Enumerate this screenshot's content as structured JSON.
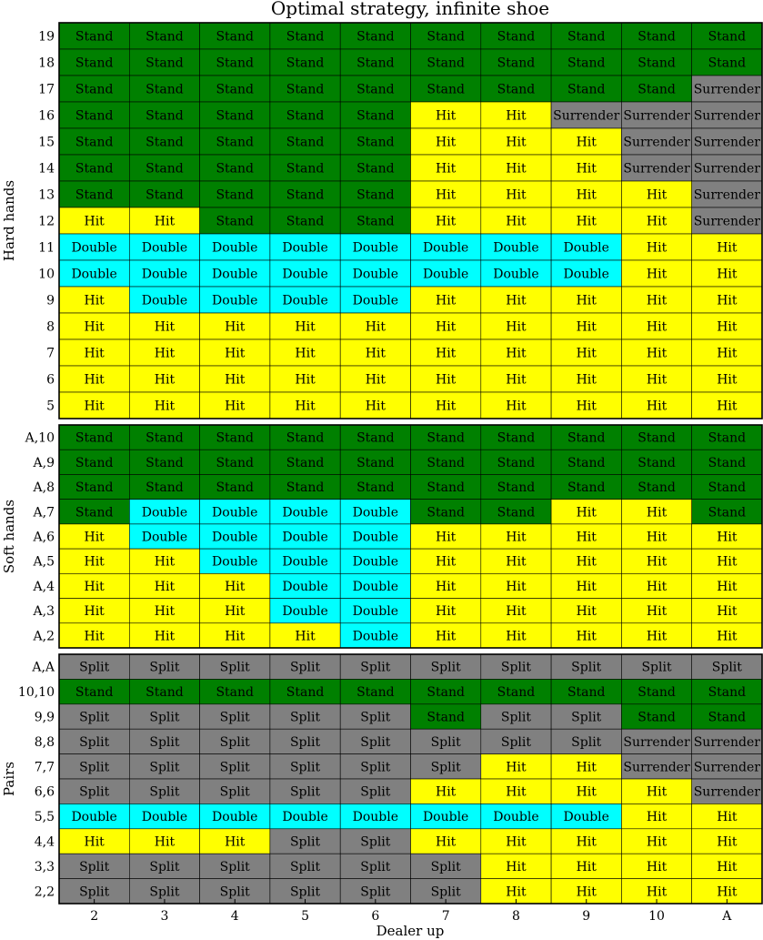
{
  "chart_data": {
    "type": "heatmap",
    "title": "Optimal strategy, infinite shoe",
    "xlabel": "Dealer up",
    "x": [
      "2",
      "3",
      "4",
      "5",
      "6",
      "7",
      "8",
      "9",
      "10",
      "A"
    ],
    "grid": true,
    "colors": {
      "Stand": "#008000",
      "Hit": "#ffff00",
      "Double": "#00ffff",
      "Split": "#808080",
      "Surrender": "#808080"
    },
    "panels": [
      {
        "ylabel": "Hard hands",
        "rows": [
          {
            "label": "19",
            "values": [
              "Stand",
              "Stand",
              "Stand",
              "Stand",
              "Stand",
              "Stand",
              "Stand",
              "Stand",
              "Stand",
              "Stand"
            ]
          },
          {
            "label": "18",
            "values": [
              "Stand",
              "Stand",
              "Stand",
              "Stand",
              "Stand",
              "Stand",
              "Stand",
              "Stand",
              "Stand",
              "Stand"
            ]
          },
          {
            "label": "17",
            "values": [
              "Stand",
              "Stand",
              "Stand",
              "Stand",
              "Stand",
              "Stand",
              "Stand",
              "Stand",
              "Stand",
              "Surrender"
            ]
          },
          {
            "label": "16",
            "values": [
              "Stand",
              "Stand",
              "Stand",
              "Stand",
              "Stand",
              "Hit",
              "Hit",
              "Surrender",
              "Surrender",
              "Surrender"
            ]
          },
          {
            "label": "15",
            "values": [
              "Stand",
              "Stand",
              "Stand",
              "Stand",
              "Stand",
              "Hit",
              "Hit",
              "Hit",
              "Surrender",
              "Surrender"
            ]
          },
          {
            "label": "14",
            "values": [
              "Stand",
              "Stand",
              "Stand",
              "Stand",
              "Stand",
              "Hit",
              "Hit",
              "Hit",
              "Surrender",
              "Surrender"
            ]
          },
          {
            "label": "13",
            "values": [
              "Stand",
              "Stand",
              "Stand",
              "Stand",
              "Stand",
              "Hit",
              "Hit",
              "Hit",
              "Hit",
              "Surrender"
            ]
          },
          {
            "label": "12",
            "values": [
              "Hit",
              "Hit",
              "Stand",
              "Stand",
              "Stand",
              "Hit",
              "Hit",
              "Hit",
              "Hit",
              "Surrender"
            ]
          },
          {
            "label": "11",
            "values": [
              "Double",
              "Double",
              "Double",
              "Double",
              "Double",
              "Double",
              "Double",
              "Double",
              "Hit",
              "Hit"
            ]
          },
          {
            "label": "10",
            "values": [
              "Double",
              "Double",
              "Double",
              "Double",
              "Double",
              "Double",
              "Double",
              "Double",
              "Hit",
              "Hit"
            ]
          },
          {
            "label": "9",
            "values": [
              "Hit",
              "Double",
              "Double",
              "Double",
              "Double",
              "Hit",
              "Hit",
              "Hit",
              "Hit",
              "Hit"
            ]
          },
          {
            "label": "8",
            "values": [
              "Hit",
              "Hit",
              "Hit",
              "Hit",
              "Hit",
              "Hit",
              "Hit",
              "Hit",
              "Hit",
              "Hit"
            ]
          },
          {
            "label": "7",
            "values": [
              "Hit",
              "Hit",
              "Hit",
              "Hit",
              "Hit",
              "Hit",
              "Hit",
              "Hit",
              "Hit",
              "Hit"
            ]
          },
          {
            "label": "6",
            "values": [
              "Hit",
              "Hit",
              "Hit",
              "Hit",
              "Hit",
              "Hit",
              "Hit",
              "Hit",
              "Hit",
              "Hit"
            ]
          },
          {
            "label": "5",
            "values": [
              "Hit",
              "Hit",
              "Hit",
              "Hit",
              "Hit",
              "Hit",
              "Hit",
              "Hit",
              "Hit",
              "Hit"
            ]
          }
        ]
      },
      {
        "ylabel": "Soft hands",
        "rows": [
          {
            "label": "A,10",
            "values": [
              "Stand",
              "Stand",
              "Stand",
              "Stand",
              "Stand",
              "Stand",
              "Stand",
              "Stand",
              "Stand",
              "Stand"
            ]
          },
          {
            "label": "A,9",
            "values": [
              "Stand",
              "Stand",
              "Stand",
              "Stand",
              "Stand",
              "Stand",
              "Stand",
              "Stand",
              "Stand",
              "Stand"
            ]
          },
          {
            "label": "A,8",
            "values": [
              "Stand",
              "Stand",
              "Stand",
              "Stand",
              "Stand",
              "Stand",
              "Stand",
              "Stand",
              "Stand",
              "Stand"
            ]
          },
          {
            "label": "A,7",
            "values": [
              "Stand",
              "Double",
              "Double",
              "Double",
              "Double",
              "Stand",
              "Stand",
              "Hit",
              "Hit",
              "Stand"
            ]
          },
          {
            "label": "A,6",
            "values": [
              "Hit",
              "Double",
              "Double",
              "Double",
              "Double",
              "Hit",
              "Hit",
              "Hit",
              "Hit",
              "Hit"
            ]
          },
          {
            "label": "A,5",
            "values": [
              "Hit",
              "Hit",
              "Double",
              "Double",
              "Double",
              "Hit",
              "Hit",
              "Hit",
              "Hit",
              "Hit"
            ]
          },
          {
            "label": "A,4",
            "values": [
              "Hit",
              "Hit",
              "Hit",
              "Double",
              "Double",
              "Hit",
              "Hit",
              "Hit",
              "Hit",
              "Hit"
            ]
          },
          {
            "label": "A,3",
            "values": [
              "Hit",
              "Hit",
              "Hit",
              "Double",
              "Double",
              "Hit",
              "Hit",
              "Hit",
              "Hit",
              "Hit"
            ]
          },
          {
            "label": "A,2",
            "values": [
              "Hit",
              "Hit",
              "Hit",
              "Hit",
              "Double",
              "Hit",
              "Hit",
              "Hit",
              "Hit",
              "Hit"
            ]
          }
        ]
      },
      {
        "ylabel": "Pairs",
        "rows": [
          {
            "label": "A,A",
            "values": [
              "Split",
              "Split",
              "Split",
              "Split",
              "Split",
              "Split",
              "Split",
              "Split",
              "Split",
              "Split"
            ]
          },
          {
            "label": "10,10",
            "values": [
              "Stand",
              "Stand",
              "Stand",
              "Stand",
              "Stand",
              "Stand",
              "Stand",
              "Stand",
              "Stand",
              "Stand"
            ]
          },
          {
            "label": "9,9",
            "values": [
              "Split",
              "Split",
              "Split",
              "Split",
              "Split",
              "Stand",
              "Split",
              "Split",
              "Stand",
              "Stand"
            ]
          },
          {
            "label": "8,8",
            "values": [
              "Split",
              "Split",
              "Split",
              "Split",
              "Split",
              "Split",
              "Split",
              "Split",
              "Surrender",
              "Surrender"
            ]
          },
          {
            "label": "7,7",
            "values": [
              "Split",
              "Split",
              "Split",
              "Split",
              "Split",
              "Split",
              "Hit",
              "Hit",
              "Surrender",
              "Surrender"
            ]
          },
          {
            "label": "6,6",
            "values": [
              "Split",
              "Split",
              "Split",
              "Split",
              "Split",
              "Hit",
              "Hit",
              "Hit",
              "Hit",
              "Surrender"
            ]
          },
          {
            "label": "5,5",
            "values": [
              "Double",
              "Double",
              "Double",
              "Double",
              "Double",
              "Double",
              "Double",
              "Double",
              "Hit",
              "Hit"
            ]
          },
          {
            "label": "4,4",
            "values": [
              "Hit",
              "Hit",
              "Hit",
              "Split",
              "Split",
              "Hit",
              "Hit",
              "Hit",
              "Hit",
              "Hit"
            ]
          },
          {
            "label": "3,3",
            "values": [
              "Split",
              "Split",
              "Split",
              "Split",
              "Split",
              "Split",
              "Hit",
              "Hit",
              "Hit",
              "Hit"
            ]
          },
          {
            "label": "2,2",
            "values": [
              "Split",
              "Split",
              "Split",
              "Split",
              "Split",
              "Split",
              "Hit",
              "Hit",
              "Hit",
              "Hit"
            ]
          }
        ]
      }
    ]
  }
}
